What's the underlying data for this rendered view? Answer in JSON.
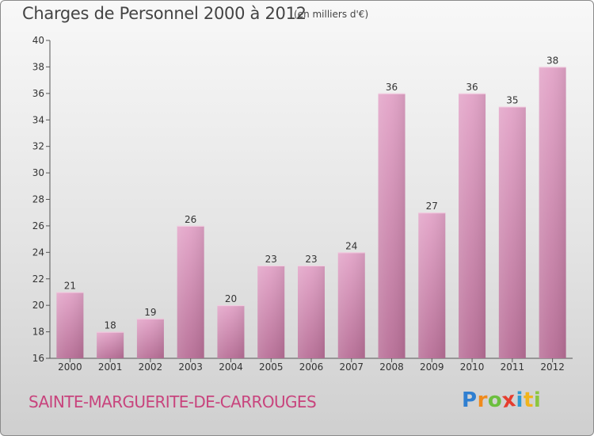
{
  "title": "Charges de Personnel 2000 à 2012",
  "subtitle": "(en milliers d'€)",
  "commune": "SAINTE-MARGUERITE-DE-CARROUGES",
  "logo": {
    "letters": [
      "P",
      "r",
      "o",
      "x",
      "i",
      "t",
      "i"
    ],
    "colors": [
      "#2f7fd1",
      "#f08a1c",
      "#6cbf3f",
      "#e53d2e",
      "#2f9ad1",
      "#f0b41c",
      "#8cc63f"
    ]
  },
  "chart_data": {
    "type": "bar",
    "categories": [
      "2000",
      "2001",
      "2002",
      "2003",
      "2004",
      "2005",
      "2006",
      "2007",
      "2008",
      "2009",
      "2010",
      "2011",
      "2012"
    ],
    "values": [
      21,
      18,
      19,
      26,
      20,
      23,
      23,
      24,
      36,
      27,
      36,
      35,
      38
    ],
    "data_labels": [
      "21",
      "18",
      "19",
      "26",
      "20",
      "23",
      "23",
      "24",
      "36",
      "27",
      "36",
      "35",
      "38"
    ],
    "ylim": [
      16,
      40
    ],
    "yticks": [
      "16",
      "18",
      "20",
      "22",
      "24",
      "26",
      "28",
      "30",
      "32",
      "34",
      "36",
      "38",
      "40"
    ],
    "grid": "none",
    "bar_color": "#d88db5"
  }
}
